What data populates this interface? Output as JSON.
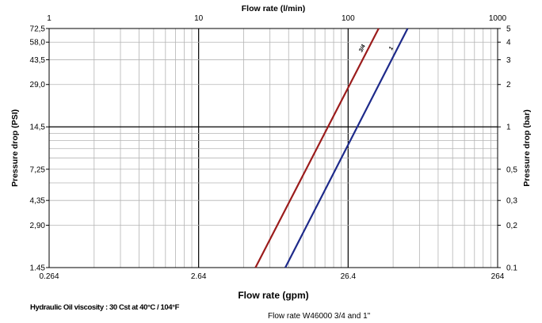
{
  "chart_data": {
    "type": "line",
    "title": "",
    "top_axis": {
      "label": "Flow rate (l/min)",
      "scale": "log",
      "range": [
        1,
        1000
      ],
      "ticks": [
        "1",
        "10",
        "100",
        "1000"
      ]
    },
    "bottom_axis": {
      "label": "Flow rate (gpm)",
      "scale": "log",
      "range": [
        0.264,
        264
      ],
      "ticks": [
        "0.264",
        "2.64",
        "26.4",
        "264"
      ]
    },
    "left_axis": {
      "label": "Pressure drop (PSI)",
      "scale": "log",
      "range": [
        1.45,
        72.5
      ],
      "ticks": [
        "72,5",
        "58,0",
        "43,5",
        "29,0",
        "14,5",
        "7,25",
        "4,35",
        "2,90",
        "1.45"
      ]
    },
    "right_axis": {
      "label": "Pressure drop (bar)",
      "scale": "log",
      "range": [
        0.1,
        5
      ],
      "ticks": [
        "5",
        "4",
        "3",
        "2",
        "1",
        "0,5",
        "0,3",
        "0,2",
        "0.1"
      ]
    },
    "grid": true,
    "series": [
      {
        "name": "3/4",
        "color": "#9b1c1c",
        "x_lpm": [
          24,
          160
        ],
        "y_bar": [
          0.1,
          5
        ]
      },
      {
        "name": "1",
        "color": "#1e2a8a",
        "x_lpm": [
          38,
          250
        ],
        "y_bar": [
          0.1,
          5
        ]
      }
    ],
    "note": "Hydraulic Oil viscosity : 30 Cst at 40°C / 104°F",
    "caption": "Flow rate W46000 3/4 and 1\""
  }
}
